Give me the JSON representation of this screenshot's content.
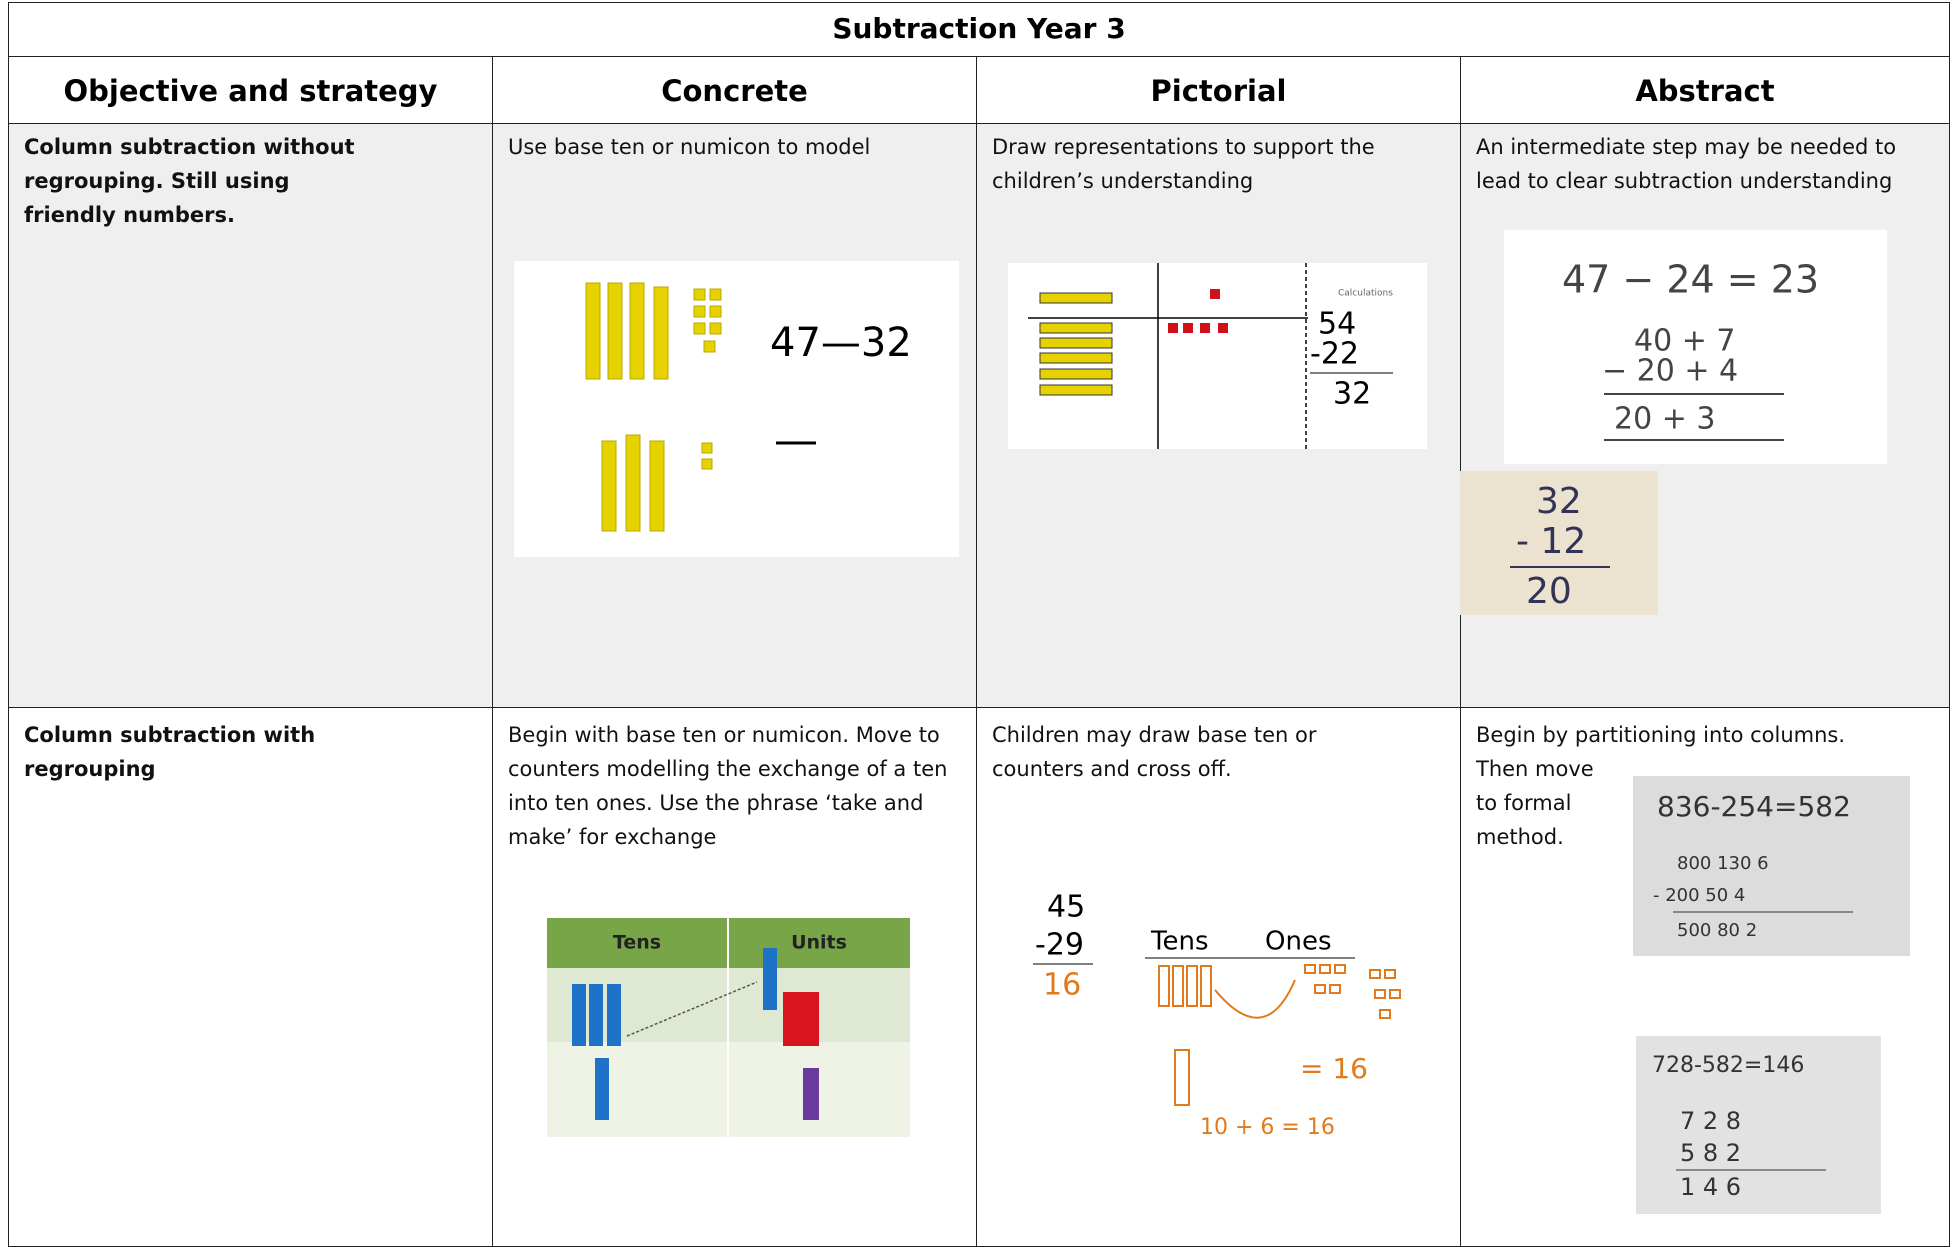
{
  "header": {
    "title": "Subtraction Year 3"
  },
  "table": {
    "columns": [
      "Objective and strategy",
      "Concrete",
      "Pictorial",
      "Abstract"
    ],
    "rows": [
      {
        "objective": "Column subtraction without regrouping. Still using friendly numbers.",
        "concrete": "Use base ten or numicon to model",
        "pictorial": "Draw representations to support the children’s understanding",
        "abstract": [
          "An intermediate step may be needed to lead to clear subtraction understanding"
        ]
      },
      {
        "objective": "Column subtraction with regrouping",
        "concrete": "Begin with base ten or numicon. Move to counters modelling the exchange of a ten into ten ones. Use the phrase ‘take and make’ for exchange",
        "pictorial": "Children may draw base ten or counters and cross off.",
        "abstract": [
          "Begin by partitioning into columns.",
          "Then move",
          "to formal",
          "method."
        ]
      }
    ]
  },
  "figures": {
    "concrete_1": "47—32",
    "pictorial_1": [
      "Calculations",
      "54",
      "-22",
      "32"
    ],
    "abstract_1": [
      "47 − 24 = 23",
      "40 + 7",
      "− 20 + 4",
      "20 + 3",
      "32",
      "- 12",
      "20"
    ],
    "concrete_2": [
      "Tens",
      "Units"
    ],
    "pictorial_2": [
      "45",
      "-29",
      "16",
      "Tens",
      "Ones",
      "= 16",
      "10 + 6 = 16"
    ],
    "abstract_2": [
      "836-254=582",
      "800 130 6",
      "- 200 50 4",
      "500 80 2",
      "728-582=146",
      "7 2 8",
      "5 8 2",
      "1 4 6"
    ]
  }
}
